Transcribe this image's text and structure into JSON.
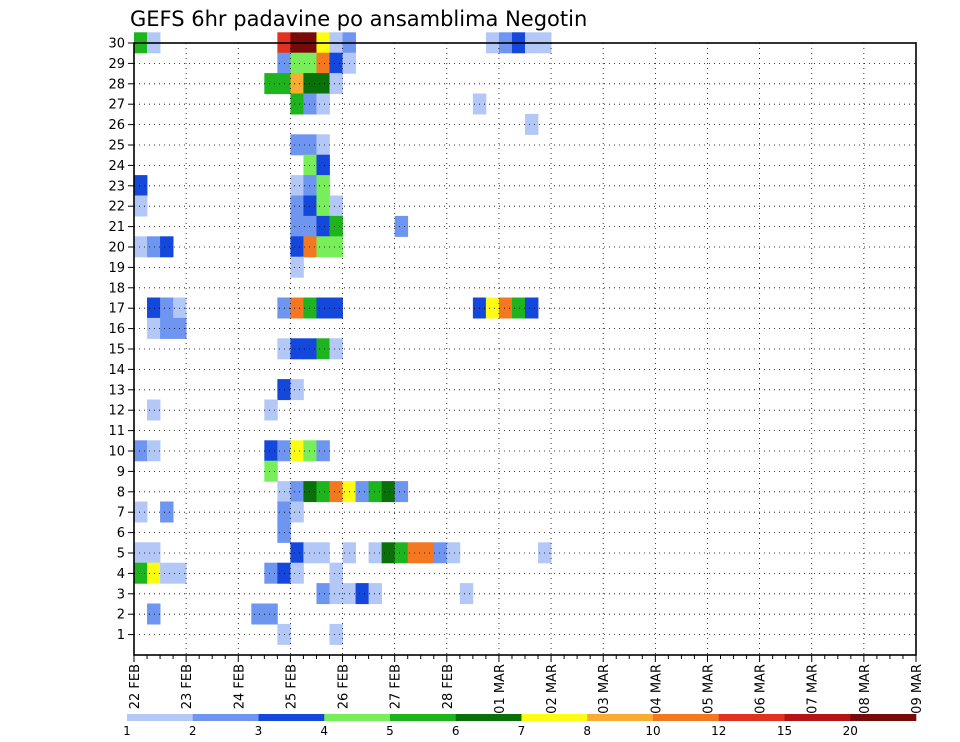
{
  "chart_data": {
    "type": "heatmap",
    "title": "GEFS 6hr padavine po ansamblima Negotin",
    "y_ticks": [
      "1",
      "2",
      "3",
      "4",
      "5",
      "6",
      "7",
      "8",
      "9",
      "10",
      "11",
      "12",
      "13",
      "14",
      "15",
      "16",
      "17",
      "18",
      "19",
      "20",
      "21",
      "22",
      "23",
      "24",
      "25",
      "26",
      "27",
      "28",
      "29",
      "30"
    ],
    "x_ticks": [
      "22 FEB",
      "23 FEB",
      "24 FEB",
      "25 FEB",
      "26 FEB",
      "27 FEB",
      "28 FEB",
      "01 MAR",
      "02 MAR",
      "03 MAR",
      "04 MAR",
      "05 MAR",
      "06 MAR",
      "07 MAR",
      "08 MAR",
      "09 MAR"
    ],
    "x_steps_per_day": 4,
    "ylim": [
      0,
      30
    ],
    "grid": true,
    "colorbar": {
      "labels": [
        "1",
        "2",
        "3",
        "4",
        "5",
        "6",
        "7",
        "8",
        "10",
        "12",
        "15",
        "20"
      ],
      "colors": [
        "#b4c8f8",
        "#6e96f0",
        "#1448dc",
        "#78ee5a",
        "#1eb41e",
        "#0a700a",
        "#fcfc14",
        "#f8ac32",
        "#f47820",
        "#e0321e",
        "#b41414",
        "#780a0a"
      ]
    },
    "cells": [
      [
        30,
        0,
        5
      ],
      [
        30,
        1,
        1
      ],
      [
        30,
        11,
        10
      ],
      [
        30,
        12,
        12
      ],
      [
        30,
        13,
        12
      ],
      [
        30,
        14,
        7
      ],
      [
        30,
        15,
        1
      ],
      [
        30,
        16,
        2
      ],
      [
        30,
        27,
        1
      ],
      [
        30,
        28,
        2
      ],
      [
        30,
        29,
        3
      ],
      [
        30,
        30,
        1
      ],
      [
        30,
        31,
        1
      ],
      [
        29,
        11,
        2
      ],
      [
        29,
        12,
        4
      ],
      [
        29,
        13,
        4
      ],
      [
        29,
        14,
        9
      ],
      [
        29,
        15,
        3
      ],
      [
        29,
        16,
        1
      ],
      [
        28,
        10,
        5
      ],
      [
        28,
        11,
        5
      ],
      [
        28,
        12,
        8
      ],
      [
        28,
        13,
        6
      ],
      [
        28,
        14,
        6
      ],
      [
        28,
        15,
        1
      ],
      [
        27,
        12,
        5
      ],
      [
        27,
        13,
        2
      ],
      [
        27,
        14,
        1
      ],
      [
        27,
        26,
        1
      ],
      [
        26,
        30,
        1
      ],
      [
        25,
        12,
        2
      ],
      [
        25,
        13,
        2
      ],
      [
        25,
        14,
        1
      ],
      [
        24,
        13,
        4
      ],
      [
        24,
        14,
        3
      ],
      [
        23,
        0,
        3
      ],
      [
        23,
        12,
        1
      ],
      [
        23,
        13,
        2
      ],
      [
        23,
        14,
        4
      ],
      [
        22,
        0,
        1
      ],
      [
        22,
        12,
        2
      ],
      [
        22,
        13,
        3
      ],
      [
        22,
        14,
        4
      ],
      [
        22,
        15,
        1
      ],
      [
        21,
        12,
        2
      ],
      [
        21,
        13,
        2
      ],
      [
        21,
        14,
        3
      ],
      [
        21,
        15,
        5
      ],
      [
        21,
        20,
        2
      ],
      [
        20,
        0,
        1
      ],
      [
        20,
        1,
        2
      ],
      [
        20,
        2,
        3
      ],
      [
        20,
        12,
        3
      ],
      [
        20,
        13,
        9
      ],
      [
        20,
        14,
        4
      ],
      [
        20,
        15,
        4
      ],
      [
        19,
        12,
        1
      ],
      [
        17,
        26,
        3
      ],
      [
        17,
        27,
        7
      ],
      [
        17,
        28,
        9
      ],
      [
        17,
        29,
        5
      ],
      [
        17,
        30,
        3
      ],
      [
        17,
        1,
        3
      ],
      [
        17,
        2,
        2
      ],
      [
        17,
        3,
        1
      ],
      [
        17,
        11,
        2
      ],
      [
        17,
        12,
        9
      ],
      [
        17,
        13,
        5
      ],
      [
        17,
        14,
        3
      ],
      [
        17,
        15,
        3
      ],
      [
        16,
        1,
        1
      ],
      [
        16,
        2,
        2
      ],
      [
        16,
        3,
        2
      ],
      [
        15,
        11,
        1
      ],
      [
        15,
        12,
        3
      ],
      [
        15,
        13,
        3
      ],
      [
        15,
        14,
        5
      ],
      [
        15,
        15,
        1
      ],
      [
        13,
        11,
        3
      ],
      [
        13,
        12,
        1
      ],
      [
        12,
        1,
        1
      ],
      [
        12,
        10,
        1
      ],
      [
        10,
        0,
        2
      ],
      [
        10,
        1,
        1
      ],
      [
        10,
        10,
        3
      ],
      [
        10,
        11,
        2
      ],
      [
        10,
        12,
        7
      ],
      [
        10,
        13,
        4
      ],
      [
        10,
        14,
        2
      ],
      [
        9,
        10,
        4
      ],
      [
        8,
        11,
        1
      ],
      [
        8,
        12,
        2
      ],
      [
        8,
        13,
        6
      ],
      [
        8,
        14,
        5
      ],
      [
        8,
        15,
        9
      ],
      [
        8,
        16,
        7
      ],
      [
        8,
        17,
        2
      ],
      [
        8,
        18,
        5
      ],
      [
        8,
        19,
        6
      ],
      [
        8,
        20,
        2
      ],
      [
        7,
        0,
        1
      ],
      [
        7,
        2,
        2
      ],
      [
        7,
        11,
        2
      ],
      [
        7,
        12,
        1
      ],
      [
        6,
        11,
        2
      ],
      [
        5,
        0,
        1
      ],
      [
        5,
        1,
        1
      ],
      [
        5,
        12,
        3
      ],
      [
        5,
        13,
        1
      ],
      [
        5,
        14,
        1
      ],
      [
        5,
        16,
        1
      ],
      [
        5,
        18,
        1
      ],
      [
        5,
        19,
        6
      ],
      [
        5,
        20,
        5
      ],
      [
        5,
        21,
        9
      ],
      [
        5,
        22,
        9
      ],
      [
        5,
        23,
        2
      ],
      [
        5,
        24,
        1
      ],
      [
        5,
        31,
        1
      ],
      [
        4,
        0,
        5
      ],
      [
        4,
        1,
        7
      ],
      [
        4,
        2,
        1
      ],
      [
        4,
        3,
        1
      ],
      [
        4,
        10,
        2
      ],
      [
        4,
        11,
        3
      ],
      [
        4,
        12,
        1
      ],
      [
        4,
        15,
        1
      ],
      [
        3,
        14,
        2
      ],
      [
        3,
        15,
        1
      ],
      [
        3,
        16,
        1
      ],
      [
        3,
        17,
        3
      ],
      [
        3,
        18,
        1
      ],
      [
        3,
        25,
        1
      ],
      [
        2,
        1,
        2
      ],
      [
        2,
        9,
        2
      ],
      [
        2,
        10,
        2
      ],
      [
        1,
        11,
        1
      ],
      [
        1,
        15,
        1
      ]
    ]
  }
}
